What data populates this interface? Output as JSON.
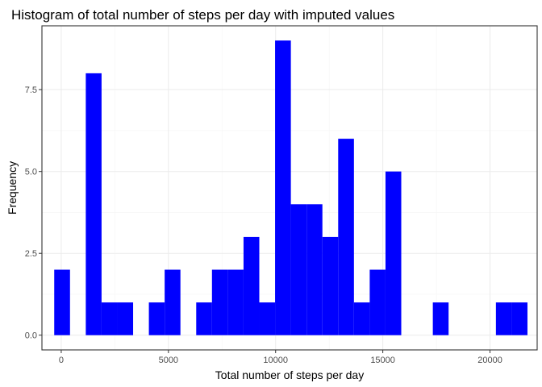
{
  "chart_data": {
    "type": "bar",
    "title": "Histogram of total number of steps per day with imputed values",
    "xlabel": "Total number of steps per day",
    "ylabel": "Frequency",
    "bar_color": "#0000ff",
    "bin_width": 735.8,
    "xlim": [
      -900,
      22200
    ],
    "ylim": [
      -0.45,
      9.45
    ],
    "x_ticks": [
      0,
      5000,
      10000,
      15000,
      20000
    ],
    "x_tick_labels": [
      "0",
      "5000",
      "10000",
      "15000",
      "20000"
    ],
    "y_ticks": [
      0,
      2.5,
      5,
      7.5
    ],
    "y_tick_labels": [
      "0.0",
      "2.5",
      "5.0",
      "7.5"
    ],
    "bins": [
      {
        "center": 41,
        "count": 2
      },
      {
        "center": 1513,
        "count": 8
      },
      {
        "center": 2249,
        "count": 1
      },
      {
        "center": 2985,
        "count": 1
      },
      {
        "center": 4456,
        "count": 1
      },
      {
        "center": 5192,
        "count": 2
      },
      {
        "center": 6664,
        "count": 1
      },
      {
        "center": 7399,
        "count": 2
      },
      {
        "center": 8135,
        "count": 2
      },
      {
        "center": 8871,
        "count": 3
      },
      {
        "center": 9607,
        "count": 1
      },
      {
        "center": 10343,
        "count": 9
      },
      {
        "center": 11078,
        "count": 4
      },
      {
        "center": 11814,
        "count": 4
      },
      {
        "center": 12550,
        "count": 3
      },
      {
        "center": 13286,
        "count": 6
      },
      {
        "center": 14022,
        "count": 1
      },
      {
        "center": 14757,
        "count": 2
      },
      {
        "center": 15493,
        "count": 5
      },
      {
        "center": 17701,
        "count": 1
      },
      {
        "center": 20644,
        "count": 1
      },
      {
        "center": 21380,
        "count": 1
      }
    ]
  }
}
